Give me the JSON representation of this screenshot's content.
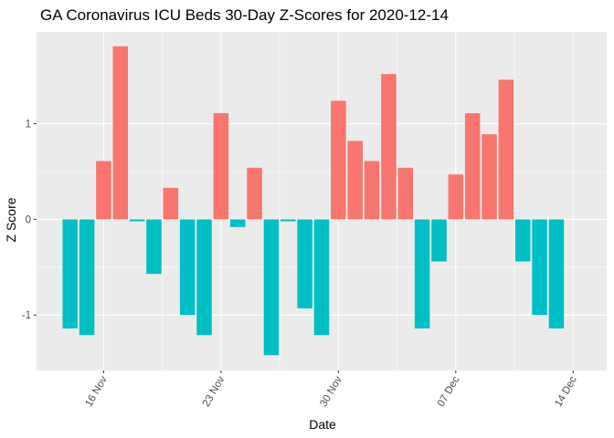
{
  "chart_data": {
    "type": "bar",
    "title": "GA Coronavirus ICU Beds 30-Day Z-Scores for 2020-12-14",
    "xlabel": "Date",
    "ylabel": "Z Score",
    "x_axis": {
      "type": "date",
      "range": [
        "2020-11-12",
        "2020-12-16"
      ],
      "ticks": [
        {
          "date": "2020-11-16",
          "label": "16 Nov"
        },
        {
          "date": "2020-11-23",
          "label": "23 Nov"
        },
        {
          "date": "2020-11-30",
          "label": "30 Nov"
        },
        {
          "date": "2020-12-07",
          "label": "07 Dec"
        },
        {
          "date": "2020-12-14",
          "label": "14 Dec"
        }
      ]
    },
    "y_axis": {
      "range": [
        -1.58,
        1.96
      ],
      "ticks": [
        {
          "value": -1,
          "label": "-1"
        },
        {
          "value": 0,
          "label": "0"
        },
        {
          "value": 1,
          "label": "1"
        }
      ]
    },
    "grid": true,
    "legend": "none",
    "colors": {
      "positive": "#F8766D",
      "negative": "#00BFC4",
      "panel": "#EBEBEB",
      "grid": "#FFFFFF"
    },
    "bars": [
      {
        "date": "2020-11-14",
        "value": -1.14
      },
      {
        "date": "2020-11-15",
        "value": -1.21
      },
      {
        "date": "2020-11-16",
        "value": 0.61
      },
      {
        "date": "2020-11-17",
        "value": 1.81
      },
      {
        "date": "2020-11-18",
        "value": -0.02
      },
      {
        "date": "2020-11-19",
        "value": -0.57
      },
      {
        "date": "2020-11-20",
        "value": 0.33
      },
      {
        "date": "2020-11-21",
        "value": -1.0
      },
      {
        "date": "2020-11-22",
        "value": -1.21
      },
      {
        "date": "2020-11-23",
        "value": 1.11
      },
      {
        "date": "2020-11-24",
        "value": -0.08
      },
      {
        "date": "2020-11-25",
        "value": 0.54
      },
      {
        "date": "2020-11-26",
        "value": -1.42
      },
      {
        "date": "2020-11-27",
        "value": -0.02
      },
      {
        "date": "2020-11-28",
        "value": -0.93
      },
      {
        "date": "2020-11-29",
        "value": -1.21
      },
      {
        "date": "2020-11-30",
        "value": 1.24
      },
      {
        "date": "2020-12-01",
        "value": 0.82
      },
      {
        "date": "2020-12-02",
        "value": 0.61
      },
      {
        "date": "2020-12-03",
        "value": 1.52
      },
      {
        "date": "2020-12-04",
        "value": 0.54
      },
      {
        "date": "2020-12-05",
        "value": -1.14
      },
      {
        "date": "2020-12-06",
        "value": -0.44
      },
      {
        "date": "2020-12-07",
        "value": 0.47
      },
      {
        "date": "2020-12-08",
        "value": 1.11
      },
      {
        "date": "2020-12-09",
        "value": 0.89
      },
      {
        "date": "2020-12-10",
        "value": 1.46
      },
      {
        "date": "2020-12-11",
        "value": -0.44
      },
      {
        "date": "2020-12-12",
        "value": -1.0
      },
      {
        "date": "2020-12-13",
        "value": -1.14
      }
    ]
  }
}
